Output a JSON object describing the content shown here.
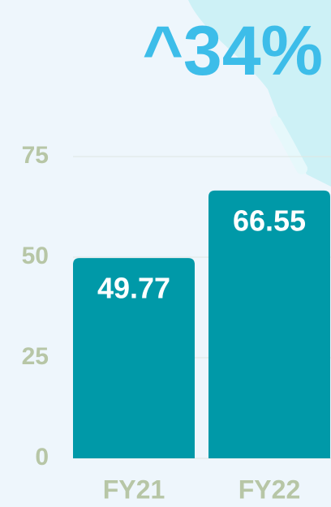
{
  "chart_data": {
    "type": "bar",
    "title": "^34%",
    "categories": [
      "FY21",
      "FY22"
    ],
    "values": [
      49.77,
      66.55
    ],
    "color": "#0099a8",
    "ylim": [
      0,
      75
    ],
    "yticks": [
      0,
      25,
      50,
      75
    ],
    "grid": true
  }
}
